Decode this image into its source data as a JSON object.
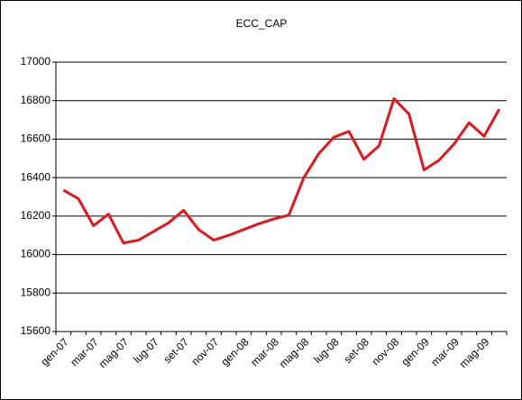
{
  "chart_data": {
    "type": "line",
    "title": "ECC_CAP",
    "categories": [
      "gen-07",
      null,
      "mar-07",
      null,
      "mag-07",
      null,
      "lug-07",
      null,
      "set-07",
      null,
      "nov-07",
      null,
      "gen-08",
      null,
      "mar-08",
      null,
      "mag-08",
      null,
      "lug-08",
      null,
      "set-08",
      null,
      "nov-08",
      null,
      "gen-09",
      null,
      "mar-09",
      null,
      "mag-09",
      null
    ],
    "series": [
      {
        "name": "ECC_CAP",
        "color": "#e8141c",
        "values": [
          16335,
          16290,
          16150,
          16210,
          16060,
          16075,
          16120,
          16165,
          16230,
          16130,
          16075,
          16100,
          16130,
          16160,
          16185,
          16205,
          16400,
          16525,
          16610,
          16640,
          16495,
          16565,
          16810,
          16730,
          16440,
          16490,
          16575,
          16685,
          16615,
          16755
        ]
      }
    ],
    "ylim": [
      15600,
      17000
    ],
    "yticks": [
      15600,
      15800,
      16000,
      16200,
      16400,
      16600,
      16800,
      17000
    ],
    "grid": true
  }
}
